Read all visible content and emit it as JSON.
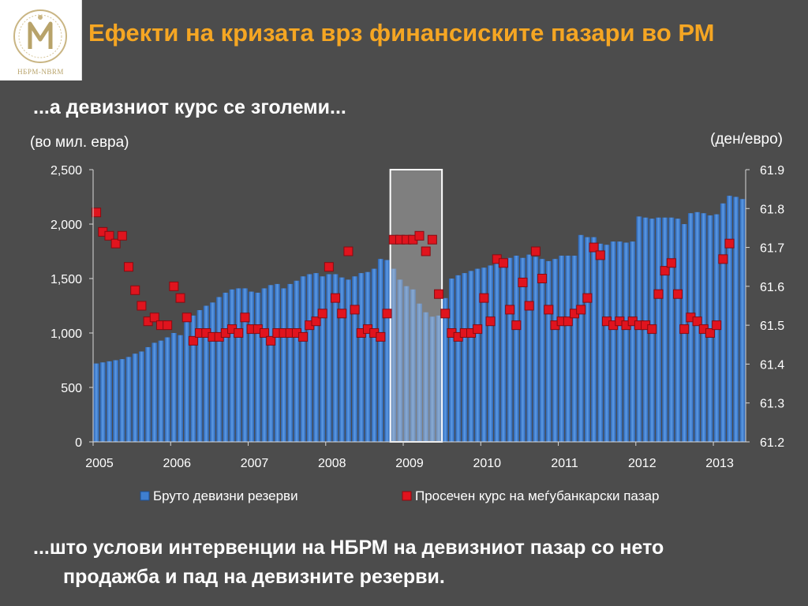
{
  "logo": {
    "text": "НБРМ-NBRM",
    "icon": "nbrm-seal-icon"
  },
  "title": "Ефекти на кризата врз финансиските пазари во РМ",
  "subtitle": "...а девизниот курс се зголеми...",
  "unit_left": "(во мил. евра)",
  "unit_right": "(ден/евро)",
  "bottom_text": {
    "line1": "...што услови интервенции на НБРМ на девизниот пазар со нето",
    "line2": "продажба и пад на девизните резерви."
  },
  "chart_data": {
    "type": "bar+scatter",
    "x_labels": [
      "2005",
      "2006",
      "2007",
      "2008",
      "2009",
      "2010",
      "2011",
      "2012",
      "2013"
    ],
    "y_left": {
      "min": 0,
      "max": 2500,
      "ticks": [
        "0",
        "500",
        "1,000",
        "1,500",
        "2,000",
        "2,500"
      ]
    },
    "y_right": {
      "min": 61.2,
      "max": 61.9,
      "ticks": [
        "61.2",
        "61.3",
        "61.4",
        "61.5",
        "61.6",
        "61.7",
        "61.8",
        "61.9"
      ]
    },
    "highlight": {
      "from_index": 46,
      "to_index": 53,
      "stroke": "#ffffff",
      "fill": "#bfbfbf"
    },
    "legend": {
      "placement": "bottom",
      "items": [
        {
          "label": "Бруто девизни резерви",
          "color": "#3f7fd0"
        },
        {
          "label": "Просечен курс на меѓубанкарски пазар",
          "color": "#e0141e"
        }
      ]
    },
    "series": [
      {
        "name": "Бруто девизни резерви",
        "kind": "bar",
        "axis": "left",
        "color": "#3f7fd0",
        "values": [
          720,
          730,
          740,
          750,
          760,
          780,
          810,
          830,
          870,
          910,
          930,
          960,
          1000,
          980,
          1120,
          1160,
          1210,
          1250,
          1280,
          1330,
          1370,
          1400,
          1410,
          1410,
          1380,
          1370,
          1410,
          1440,
          1450,
          1410,
          1450,
          1480,
          1520,
          1540,
          1550,
          1520,
          1540,
          1540,
          1510,
          1490,
          1520,
          1550,
          1560,
          1590,
          1680,
          1670,
          1590,
          1490,
          1430,
          1400,
          1270,
          1190,
          1150,
          1160,
          1320,
          1500,
          1530,
          1550,
          1570,
          1590,
          1600,
          1620,
          1640,
          1650,
          1690,
          1710,
          1690,
          1720,
          1700,
          1680,
          1660,
          1680,
          1710,
          1710,
          1710,
          1900,
          1880,
          1880,
          1820,
          1810,
          1840,
          1840,
          1830,
          1840,
          2070,
          2060,
          2050,
          2060,
          2060,
          2060,
          2050,
          2000,
          2100,
          2110,
          2100,
          2080,
          2090,
          2190,
          2260,
          2250,
          2230
        ]
      },
      {
        "name": "Просечен курс на меѓубанкарски пазар",
        "kind": "marker",
        "axis": "right",
        "color": "#e0141e",
        "values": [
          61.79,
          61.74,
          61.73,
          61.71,
          61.73,
          61.65,
          61.59,
          61.55,
          61.51,
          61.52,
          61.5,
          61.5,
          61.6,
          61.57,
          61.52,
          61.46,
          61.48,
          61.48,
          61.47,
          61.47,
          61.48,
          61.49,
          61.48,
          61.52,
          61.49,
          61.49,
          61.48,
          61.46,
          61.48,
          61.48,
          61.48,
          61.48,
          61.47,
          61.5,
          61.51,
          61.53,
          61.65,
          61.57,
          61.53,
          61.69,
          61.54,
          61.48,
          61.49,
          61.48,
          61.47,
          61.53,
          61.72,
          61.72,
          61.72,
          61.72,
          61.73,
          61.69,
          61.72,
          61.58,
          61.53,
          61.48,
          61.47,
          61.48,
          61.48,
          61.49,
          61.57,
          61.51,
          61.67,
          61.66,
          61.54,
          61.5,
          61.61,
          61.55,
          61.69,
          61.62,
          61.54,
          61.5,
          61.51,
          61.51,
          61.53,
          61.54,
          61.57,
          61.7,
          61.68,
          61.51,
          61.5,
          61.51,
          61.5,
          61.51,
          61.5,
          61.5,
          61.49,
          61.58,
          61.64,
          61.66,
          61.58,
          61.49,
          61.52,
          61.51,
          61.49,
          61.48,
          61.5,
          61.67,
          61.71
        ]
      }
    ]
  }
}
